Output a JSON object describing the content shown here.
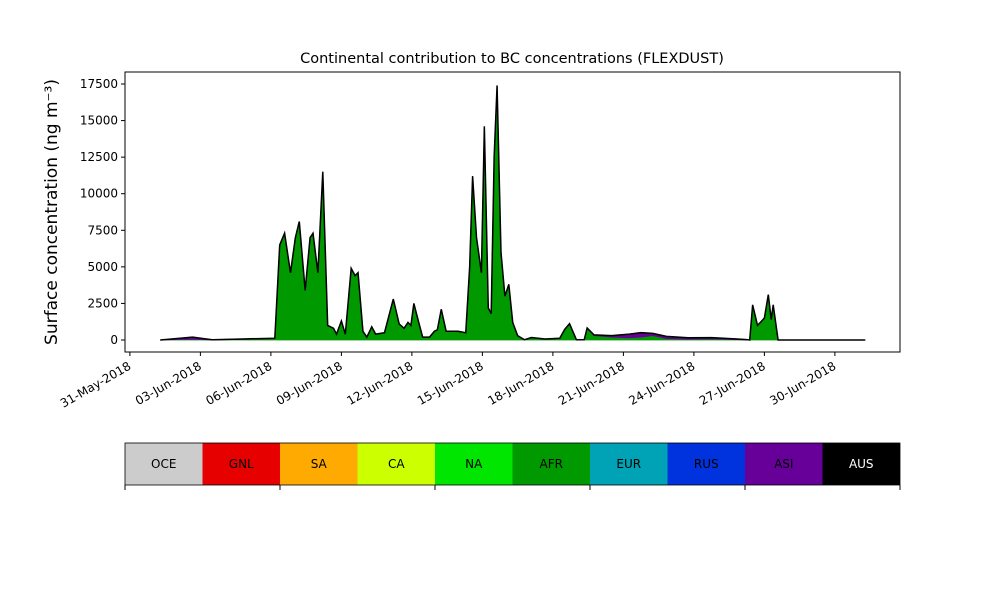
{
  "chart_data": {
    "type": "stacked-area",
    "title": "Continental contribution to BC concentrations (FLEXDUST)",
    "ylabel": "Surface concentration (ng m⁻³)",
    "x": [
      "2018-06-01T07:00",
      "2018-06-02T16:00",
      "2018-06-03T12:00",
      "2018-06-05T00:00",
      "2018-06-06T04:00",
      "2018-06-06T09:00",
      "2018-06-06T14:00",
      "2018-06-06T20:00",
      "2018-06-07T01:00",
      "2018-06-07T05:00",
      "2018-06-07T11:00",
      "2018-06-07T16:00",
      "2018-06-07T19:00",
      "2018-06-08T00:00",
      "2018-06-08T05:00",
      "2018-06-08T10:00",
      "2018-06-08T16:00",
      "2018-06-08T19:00",
      "2018-06-09T00:00",
      "2018-06-09T04:00",
      "2018-06-09T10:00",
      "2018-06-09T14:00",
      "2018-06-09T17:00",
      "2018-06-09T22:00",
      "2018-06-10T02:00",
      "2018-06-10T07:00",
      "2018-06-10T11:00",
      "2018-06-10T20:00",
      "2018-06-11T05:00",
      "2018-06-11T11:00",
      "2018-06-11T16:00",
      "2018-06-11T20:00",
      "2018-06-11T23:00",
      "2018-06-12T02:00",
      "2018-06-12T07:00",
      "2018-06-12T11:00",
      "2018-06-12T18:00",
      "2018-06-12T23:00",
      "2018-06-13T02:00",
      "2018-06-13T06:00",
      "2018-06-13T11:00",
      "2018-06-13T23:00",
      "2018-06-14T07:00",
      "2018-06-14T11:00",
      "2018-06-14T14:00",
      "2018-06-14T18:00",
      "2018-06-14T23:00",
      "2018-06-15T02:00",
      "2018-06-15T06:00",
      "2018-06-15T09:00",
      "2018-06-15T12:00",
      "2018-06-15T15:00",
      "2018-06-15T19:00",
      "2018-06-15T23:00",
      "2018-06-16T03:00",
      "2018-06-16T07:00",
      "2018-06-16T12:00",
      "2018-06-16T19:00",
      "2018-06-17T02:00",
      "2018-06-17T16:00",
      "2018-06-18T07:00",
      "2018-06-18T12:00",
      "2018-06-18T17:00",
      "2018-06-19T00:00",
      "2018-06-19T08:00",
      "2018-06-19T11:00",
      "2018-06-19T18:00",
      "2018-06-20T12:00",
      "2018-06-21T06:00",
      "2018-06-21T18:00",
      "2018-06-22T06:00",
      "2018-06-22T20:00",
      "2018-06-23T18:00",
      "2018-06-24T18:00",
      "2018-06-25T18:00",
      "2018-06-26T06:00",
      "2018-06-26T09:00",
      "2018-06-26T12:00",
      "2018-06-26T17:00",
      "2018-06-27T00:00",
      "2018-06-27T04:00",
      "2018-06-27T07:00",
      "2018-06-27T09:00",
      "2018-06-27T14:00",
      "2018-06-28T12:00",
      "2018-06-30T12:00",
      "2018-07-01T07:00"
    ],
    "series": [
      {
        "name": "AFR",
        "color": "#009900",
        "values": [
          0,
          50,
          0,
          50,
          100,
          6500,
          7300,
          4600,
          7000,
          8100,
          3400,
          7000,
          7300,
          4600,
          11500,
          1000,
          800,
          400,
          1300,
          400,
          4900,
          4400,
          4600,
          600,
          200,
          900,
          400,
          500,
          2800,
          1100,
          800,
          1200,
          1000,
          2500,
          1200,
          200,
          200,
          600,
          700,
          2100,
          600,
          600,
          500,
          5000,
          11200,
          7000,
          4600,
          14600,
          2200,
          1800,
          12500,
          17400,
          6000,
          3000,
          3800,
          1200,
          300,
          0,
          150,
          50,
          100,
          700,
          1100,
          0,
          0,
          800,
          300,
          200,
          150,
          200,
          300,
          100,
          50,
          80,
          30,
          0,
          0,
          2400,
          1000,
          1500,
          3100,
          1400,
          2400,
          0,
          0,
          0,
          0
        ]
      },
      {
        "name": "ASI",
        "color": "#660099",
        "values": [
          0,
          150,
          20,
          30,
          20,
          0,
          0,
          0,
          0,
          0,
          0,
          0,
          0,
          0,
          0,
          0,
          0,
          0,
          0,
          0,
          0,
          0,
          0,
          0,
          0,
          0,
          0,
          0,
          0,
          0,
          0,
          0,
          0,
          0,
          0,
          0,
          0,
          0,
          0,
          0,
          0,
          0,
          0,
          0,
          0,
          0,
          0,
          0,
          0,
          0,
          0,
          0,
          0,
          0,
          0,
          0,
          0,
          20,
          20,
          20,
          20,
          20,
          20,
          20,
          20,
          20,
          50,
          100,
          250,
          300,
          150,
          150,
          100,
          80,
          50,
          30,
          0,
          0,
          0,
          0,
          0,
          0,
          0,
          0,
          0,
          0,
          0
        ]
      }
    ],
    "xlim": [
      "2018-05-30T19:00",
      "2018-07-02T18:30"
    ],
    "xticks": [
      {
        "value": "2018-05-31",
        "label": "31-May-2018"
      },
      {
        "value": "2018-06-03",
        "label": "03-Jun-2018"
      },
      {
        "value": "2018-06-06",
        "label": "06-Jun-2018"
      },
      {
        "value": "2018-06-09",
        "label": "09-Jun-2018"
      },
      {
        "value": "2018-06-12",
        "label": "12-Jun-2018"
      },
      {
        "value": "2018-06-15",
        "label": "15-Jun-2018"
      },
      {
        "value": "2018-06-18",
        "label": "18-Jun-2018"
      },
      {
        "value": "2018-06-21",
        "label": "21-Jun-2018"
      },
      {
        "value": "2018-06-24",
        "label": "24-Jun-2018"
      },
      {
        "value": "2018-06-27",
        "label": "27-Jun-2018"
      },
      {
        "value": "2018-06-30",
        "label": "30-Jun-2018"
      }
    ],
    "ylim": [
      -820,
      18320
    ],
    "yticks": [
      0,
      2500,
      5000,
      7500,
      10000,
      12500,
      15000,
      17500
    ],
    "outline_color": "#000000",
    "legend_entries": [
      {
        "name": "OCE",
        "color": "#cccccc",
        "text_color": "#000000"
      },
      {
        "name": "GNL",
        "color": "#e60000",
        "text_color": "#000000"
      },
      {
        "name": "SA",
        "color": "#ffaa00",
        "text_color": "#000000"
      },
      {
        "name": "CA",
        "color": "#ccff00",
        "text_color": "#000000"
      },
      {
        "name": "NA",
        "color": "#00e600",
        "text_color": "#000000"
      },
      {
        "name": "AFR",
        "color": "#009900",
        "text_color": "#000000"
      },
      {
        "name": "EUR",
        "color": "#00a3b5",
        "text_color": "#000000"
      },
      {
        "name": "RUS",
        "color": "#0033dd",
        "text_color": "#000000"
      },
      {
        "name": "ASI",
        "color": "#660099",
        "text_color": "#000000"
      },
      {
        "name": "AUS",
        "color": "#000000",
        "text_color": "#ffffff"
      }
    ]
  }
}
